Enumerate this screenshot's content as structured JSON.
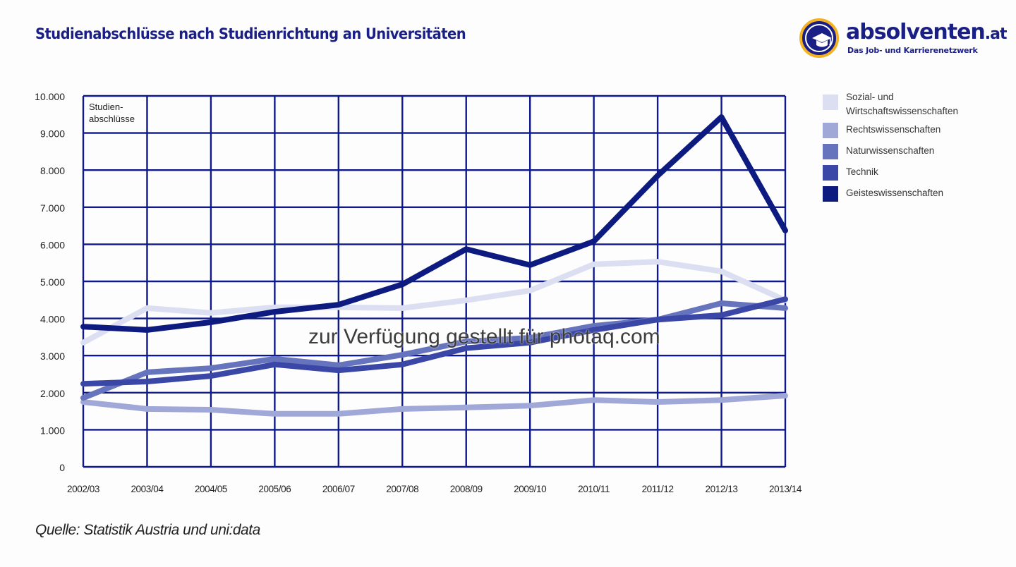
{
  "header": {
    "title": "Studienabschlüsse nach Studienrichtung an Universitäten"
  },
  "logo": {
    "name": "absolventen",
    "tld": ".at",
    "tagline": "Das Job- und Karrierenetzwerk",
    "icon": "graduation-cap-icon",
    "colors": {
      "circle": "#1a1f85",
      "ring": "#f4b223"
    }
  },
  "footer": {
    "source": "Quelle: Statistik Austria und uni:data"
  },
  "watermark": "zur Verfügung gestellt für photaq.com",
  "colors": {
    "grid": "#0e1a8c",
    "sozial": "#dcdff2",
    "rechts": "#a0a8d8",
    "natur": "#6673bd",
    "technik": "#3a47a6",
    "geistes": "#0d1a80"
  },
  "chart_data": {
    "type": "line",
    "title": "Studienabschlüsse nach Studienrichtung an Universitäten",
    "xlabel": "",
    "ylabel": "Studien-abschlüsse",
    "ylabel_lines": [
      "Studien-",
      "abschlüsse"
    ],
    "ylim": [
      0,
      10000
    ],
    "yticks": [
      0,
      1000,
      2000,
      3000,
      4000,
      5000,
      6000,
      7000,
      8000,
      9000,
      10000
    ],
    "ytick_labels": [
      "0",
      "1.000",
      "2.000",
      "3.000",
      "4.000",
      "5.000",
      "6.000",
      "7.000",
      "8.000",
      "9.000",
      "10.000"
    ],
    "grid": true,
    "legend_position": "right",
    "categories": [
      "2002/03",
      "2003/04",
      "2004/05",
      "2005/06",
      "2006/07",
      "2007/08",
      "2008/09",
      "2009/10",
      "2010/11",
      "2011/12",
      "2012/13",
      "2013/14"
    ],
    "series": [
      {
        "key": "sozial",
        "name": "Sozial- und Wirtschaftswissenschaften",
        "legend_lines": [
          "Sozial- und",
          "Wirtschaftswissenschaften"
        ],
        "color": "#dcdff2",
        "values": [
          3350,
          4280,
          4150,
          4300,
          4300,
          4280,
          4490,
          4750,
          5460,
          5530,
          5270,
          4490
        ]
      },
      {
        "key": "rechts",
        "name": "Rechtswissenschaften",
        "legend_lines": [
          "Rechtswissenschaften"
        ],
        "color": "#a0a8d8",
        "values": [
          1750,
          1560,
          1540,
          1430,
          1430,
          1560,
          1600,
          1650,
          1800,
          1750,
          1800,
          1920
        ]
      },
      {
        "key": "natur",
        "name": "Naturwissenschaften",
        "legend_lines": [
          "Naturwissenschaften"
        ],
        "color": "#6673bd",
        "values": [
          1860,
          2550,
          2660,
          2910,
          2740,
          3020,
          3380,
          3480,
          3800,
          3970,
          4410,
          4280
        ]
      },
      {
        "key": "technik",
        "name": "Technik",
        "legend_lines": [
          "Technik"
        ],
        "color": "#3a47a6",
        "values": [
          2240,
          2300,
          2450,
          2760,
          2600,
          2760,
          3200,
          3350,
          3690,
          3970,
          4090,
          4520
        ]
      },
      {
        "key": "geistes",
        "name": "Geisteswissenschaften",
        "legend_lines": [
          "Geisteswissenschaften"
        ],
        "color": "#0d1a80",
        "values": [
          3780,
          3690,
          3900,
          4180,
          4370,
          4920,
          5870,
          5440,
          6080,
          7850,
          9430,
          6370
        ]
      }
    ]
  }
}
